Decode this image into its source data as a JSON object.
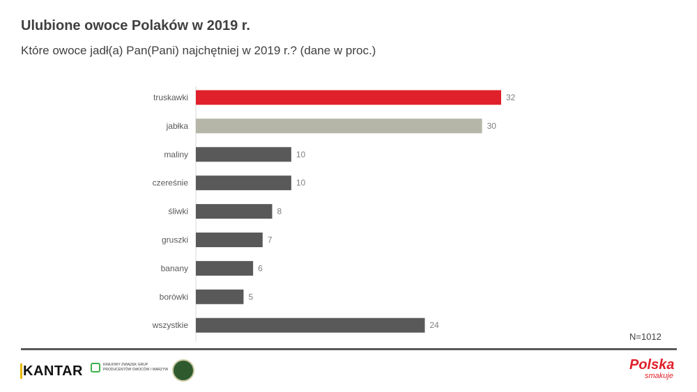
{
  "chart_data": {
    "type": "bar",
    "orientation": "horizontal",
    "title": "Ulubione owoce Polaków w 2019 r.",
    "subtitle": "Które owoce jadł(a) Pan(Pani) najchętniej w 2019 r.? (dane w proc.)",
    "categories": [
      "truskawki",
      "jabłka",
      "maliny",
      "czereśnie",
      "śliwki",
      "gruszki",
      "banany",
      "borówki",
      "wszystkie"
    ],
    "values": [
      32,
      30,
      10,
      10,
      8,
      7,
      6,
      5,
      24
    ],
    "colors": [
      "#e0202a",
      "#b5b5a8",
      "#595959",
      "#595959",
      "#595959",
      "#595959",
      "#595959",
      "#595959",
      "#595959"
    ],
    "xlim": [
      0,
      32
    ],
    "grid": false,
    "note": "N=1012"
  },
  "footer": {
    "kantar": "KANTAR",
    "kzgp_line1": "Krajowy Związek Grup",
    "kzgp_line2": "Producentów Owoców i Warzyw",
    "polska": "Polska",
    "smakuje": "smakuje"
  }
}
